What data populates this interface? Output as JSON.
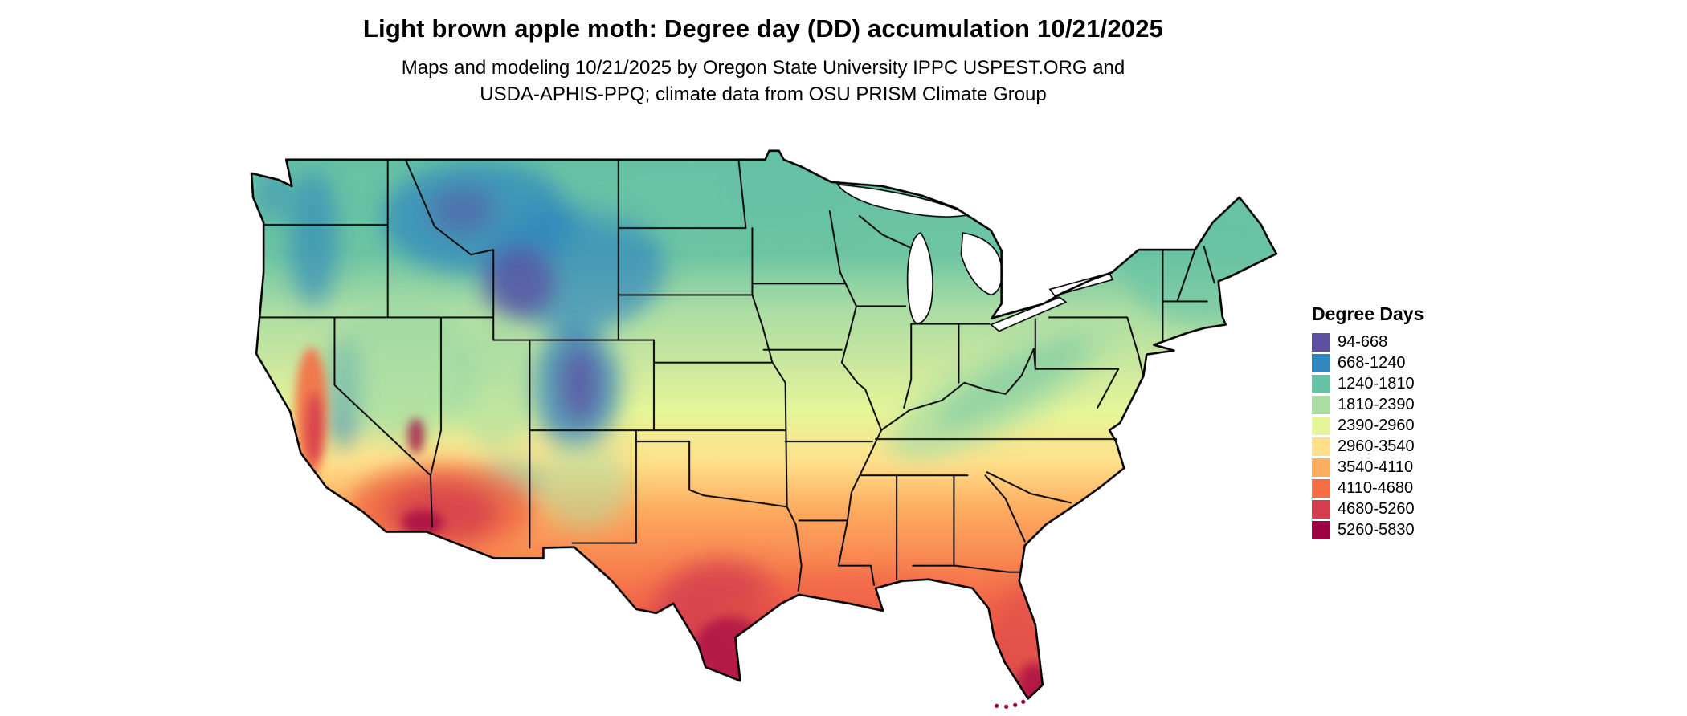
{
  "header": {
    "title": "Light brown apple moth: Degree day (DD) accumulation 10/21/2025",
    "subtitle_line1": "Maps and modeling 10/21/2025 by Oregon State University IPPC USPEST.ORG and",
    "subtitle_line2": "USDA-APHIS-PPQ; climate data from OSU PRISM Climate Group"
  },
  "map": {
    "region": "Continental United States",
    "kind": "degree-day accumulation choropleth with state borders"
  },
  "legend": {
    "title": "Degree Days",
    "bins": [
      {
        "label": "94-668",
        "color": "#5e4fa2"
      },
      {
        "label": "668-1240",
        "color": "#3288bd"
      },
      {
        "label": "1240-1810",
        "color": "#66c2a5"
      },
      {
        "label": "1810-2390",
        "color": "#abdda4"
      },
      {
        "label": "2390-2960",
        "color": "#e6f598"
      },
      {
        "label": "2960-3540",
        "color": "#fee08b"
      },
      {
        "label": "3540-4110",
        "color": "#fdae61"
      },
      {
        "label": "4110-4680",
        "color": "#f46d43"
      },
      {
        "label": "4680-5260",
        "color": "#d53e4f"
      },
      {
        "label": "5260-5830",
        "color": "#9e0142"
      }
    ]
  }
}
